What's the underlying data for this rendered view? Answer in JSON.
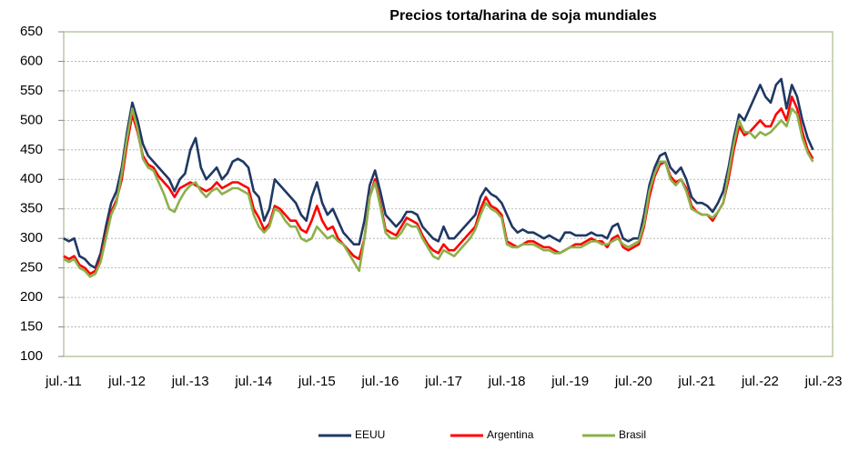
{
  "chart_data": {
    "type": "line",
    "title": "Precios torta/harina de soja mundiales",
    "categories": [
      "jul.-11",
      null,
      null,
      null,
      null,
      null,
      null,
      null,
      null,
      null,
      null,
      null,
      "jul.-12",
      null,
      null,
      null,
      null,
      null,
      null,
      null,
      null,
      null,
      null,
      null,
      "jul.-13",
      null,
      null,
      null,
      null,
      null,
      null,
      null,
      null,
      null,
      null,
      null,
      "jul.-14",
      null,
      null,
      null,
      null,
      null,
      null,
      null,
      null,
      null,
      null,
      null,
      "jul.-15",
      null,
      null,
      null,
      null,
      null,
      null,
      null,
      null,
      null,
      null,
      null,
      "jul.-16",
      null,
      null,
      null,
      null,
      null,
      null,
      null,
      null,
      null,
      null,
      null,
      "jul.-17",
      null,
      null,
      null,
      null,
      null,
      null,
      null,
      null,
      null,
      null,
      null,
      "jul.-18",
      null,
      null,
      null,
      null,
      null,
      null,
      null,
      null,
      null,
      null,
      null,
      "jul.-19",
      null,
      null,
      null,
      null,
      null,
      null,
      null,
      null,
      null,
      null,
      null,
      "jul.-20",
      null,
      null,
      null,
      null,
      null,
      null,
      null,
      null,
      null,
      null,
      null,
      "jul.-21",
      null,
      null,
      null,
      null,
      null,
      null,
      null,
      null,
      null,
      null,
      null,
      "jul.-22",
      null,
      null,
      null,
      null,
      null,
      null,
      null,
      null,
      null,
      null,
      null,
      "jul.-23"
    ],
    "series": [
      {
        "name": "EEUU",
        "color": "#1f3864",
        "values": [
          300,
          295,
          300,
          270,
          265,
          255,
          250,
          275,
          320,
          360,
          380,
          420,
          480,
          530,
          500,
          460,
          440,
          430,
          420,
          410,
          400,
          380,
          400,
          410,
          450,
          470,
          420,
          400,
          410,
          420,
          400,
          410,
          430,
          435,
          430,
          420,
          380,
          370,
          330,
          350,
          400,
          390,
          380,
          370,
          360,
          340,
          330,
          370,
          395,
          360,
          340,
          350,
          330,
          310,
          300,
          290,
          290,
          330,
          390,
          415,
          380,
          340,
          330,
          320,
          330,
          345,
          345,
          340,
          320,
          310,
          300,
          295,
          320,
          300,
          300,
          310,
          320,
          330,
          340,
          370,
          385,
          375,
          370,
          360,
          340,
          320,
          310,
          315,
          310,
          310,
          305,
          300,
          305,
          300,
          295,
          310,
          310,
          305,
          305,
          305,
          310,
          305,
          305,
          300,
          320,
          325,
          300,
          295,
          300,
          300,
          340,
          390,
          420,
          440,
          445,
          420,
          410,
          420,
          400,
          370,
          360,
          360,
          355,
          345,
          360,
          380,
          420,
          470,
          510,
          500,
          520,
          540,
          560,
          540,
          530,
          560,
          570,
          520,
          560,
          540,
          500,
          470,
          450,
          null,
          null
        ]
      },
      {
        "name": "Argentina",
        "color": "#ff0000",
        "values": [
          270,
          265,
          270,
          255,
          250,
          240,
          245,
          265,
          305,
          345,
          365,
          400,
          460,
          510,
          480,
          440,
          425,
          420,
          405,
          395,
          385,
          370,
          385,
          390,
          395,
          390,
          385,
          380,
          385,
          395,
          385,
          390,
          395,
          395,
          390,
          385,
          350,
          335,
          315,
          325,
          355,
          350,
          340,
          330,
          330,
          315,
          310,
          330,
          355,
          330,
          315,
          320,
          300,
          290,
          280,
          270,
          265,
          300,
          370,
          400,
          360,
          315,
          310,
          305,
          320,
          335,
          330,
          325,
          305,
          290,
          280,
          275,
          290,
          280,
          280,
          290,
          300,
          310,
          320,
          350,
          370,
          355,
          350,
          340,
          295,
          290,
          285,
          290,
          295,
          295,
          290,
          285,
          285,
          280,
          275,
          280,
          285,
          290,
          290,
          295,
          300,
          295,
          295,
          285,
          300,
          305,
          285,
          280,
          285,
          290,
          320,
          370,
          405,
          425,
          430,
          405,
          395,
          400,
          385,
          355,
          345,
          340,
          340,
          330,
          345,
          360,
          400,
          450,
          490,
          475,
          480,
          490,
          500,
          490,
          490,
          510,
          520,
          500,
          540,
          520,
          480,
          450,
          435,
          null,
          null
        ]
      },
      {
        "name": "Brasil",
        "color": "#8db04a",
        "values": [
          265,
          260,
          265,
          250,
          245,
          235,
          240,
          260,
          300,
          340,
          360,
          410,
          470,
          520,
          485,
          435,
          420,
          415,
          395,
          375,
          350,
          345,
          365,
          380,
          390,
          395,
          380,
          370,
          380,
          385,
          375,
          380,
          385,
          385,
          380,
          375,
          340,
          320,
          310,
          320,
          350,
          345,
          330,
          320,
          320,
          300,
          295,
          300,
          320,
          310,
          300,
          305,
          295,
          290,
          275,
          260,
          245,
          300,
          370,
          395,
          355,
          310,
          300,
          300,
          310,
          325,
          320,
          320,
          300,
          285,
          270,
          265,
          280,
          275,
          270,
          280,
          290,
          300,
          315,
          340,
          360,
          350,
          345,
          335,
          290,
          285,
          285,
          290,
          290,
          290,
          285,
          280,
          280,
          275,
          275,
          280,
          285,
          285,
          285,
          290,
          295,
          295,
          290,
          290,
          295,
          300,
          290,
          285,
          290,
          295,
          325,
          380,
          410,
          430,
          430,
          400,
          390,
          400,
          380,
          350,
          345,
          340,
          340,
          335,
          345,
          360,
          410,
          460,
          500,
          480,
          480,
          470,
          480,
          475,
          480,
          490,
          500,
          490,
          520,
          510,
          470,
          445,
          430,
          null,
          null
        ]
      }
    ],
    "ylim": [
      100,
      650
    ],
    "yticks": [
      100,
      150,
      200,
      250,
      300,
      350,
      400,
      450,
      500,
      550,
      600,
      650
    ],
    "grid": true
  }
}
